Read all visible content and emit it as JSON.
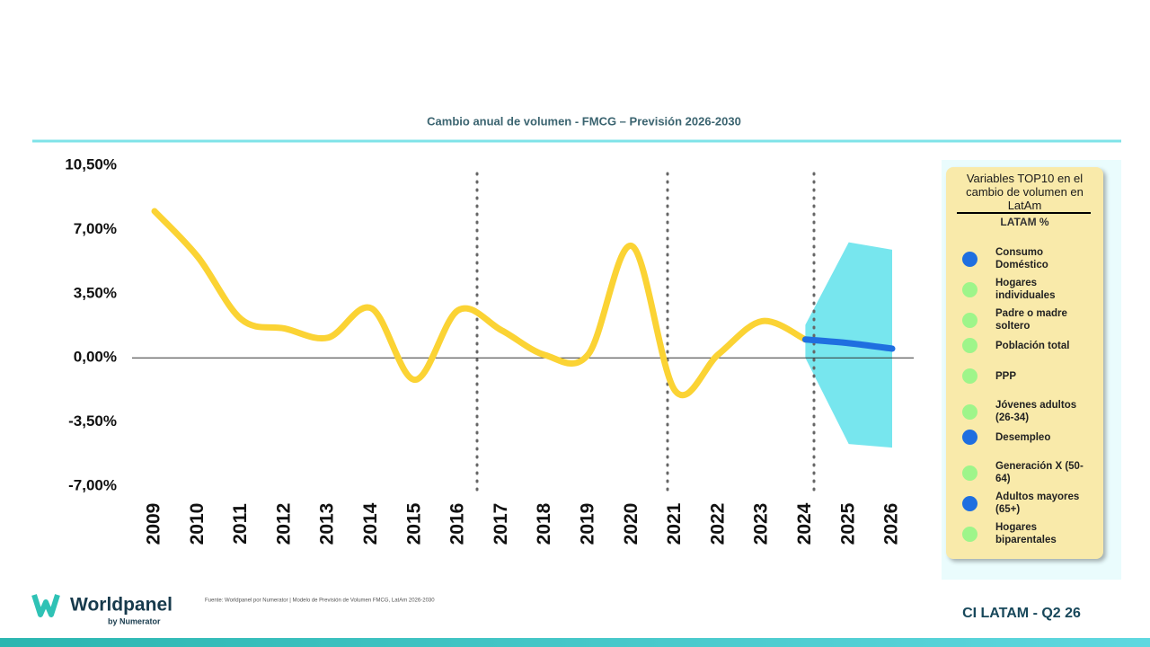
{
  "chart_data": {
    "type": "line",
    "title": "Cambio anual de volumen - FMCG – Previsión 2026-2030",
    "categories": [
      "2009",
      "2010",
      "2011",
      "2012",
      "2013",
      "2014",
      "2015",
      "2016",
      "2017",
      "2018",
      "2019",
      "2020",
      "2021",
      "2022",
      "2023",
      "2024",
      "2025",
      "2026"
    ],
    "series": [
      {
        "color": "#fbd334",
        "values": [
          8.0,
          5.5,
          2.1,
          1.6,
          1.1,
          2.7,
          -1.2,
          2.6,
          1.5,
          0.15,
          0.2,
          6.1,
          -1.8,
          0.2,
          2.0,
          1.0,
          null,
          null
        ]
      },
      {
        "color": "#1f6fe0",
        "values": [
          null,
          null,
          null,
          null,
          null,
          null,
          null,
          null,
          null,
          null,
          null,
          null,
          null,
          null,
          null,
          1.0,
          0.8,
          0.5
        ]
      }
    ],
    "band": {
      "color": "#77e6ee",
      "upper": [
        null,
        null,
        null,
        null,
        null,
        null,
        null,
        null,
        null,
        null,
        null,
        null,
        null,
        null,
        null,
        1.8,
        6.3,
        5.9
      ],
      "lower": [
        null,
        null,
        null,
        null,
        null,
        null,
        null,
        null,
        null,
        null,
        null,
        null,
        null,
        null,
        null,
        0,
        -4.7,
        -4.9
      ]
    },
    "ylim": [
      -7,
      10.5
    ],
    "yticks": [
      {
        "value": -7,
        "label": "-7,00%"
      },
      {
        "value": -3.5,
        "label": "-3,50%"
      },
      {
        "value": 0,
        "label": "0,00%"
      },
      {
        "value": 3.5,
        "label": "3,50%"
      },
      {
        "value": 7,
        "label": "7,00%"
      },
      {
        "value": 10.5,
        "label": "10,50%"
      }
    ]
  },
  "panel": {
    "title": "Variables TOP10 en el cambio de volumen en LatAm",
    "subtitle": "LATAM %",
    "items": [
      {
        "label": "Consumo Doméstico",
        "color": "#1f6fe0"
      },
      {
        "label": "Hogares individuales",
        "color": "#9ef58a"
      },
      {
        "label": "Padre o madre soltero",
        "color": "#9ef58a"
      },
      {
        "label": "Población total",
        "color": "#9ef58a"
      },
      {
        "label": "PPP",
        "color": "#9ef58a"
      },
      {
        "label": "Jóvenes adultos (26-34)",
        "color": "#9ef58a"
      },
      {
        "label": "Desempleo",
        "color": "#1f6fe0"
      },
      {
        "label": "Generación X (50-64)",
        "color": "#9ef58a"
      },
      {
        "label": "Adultos mayores (65+)",
        "color": "#1f6fe0"
      },
      {
        "label": "Hogares biparentales",
        "color": "#9ef58a"
      }
    ]
  },
  "footer": {
    "logo": "Worldpanel",
    "logo_sub": "by Numerator",
    "source": "Fuente: Worldpanel por Numerator | Modelo de Previsión de Volumen FMCG, LatAm 2026-2030",
    "code": "CI LATAM - Q2 26"
  }
}
